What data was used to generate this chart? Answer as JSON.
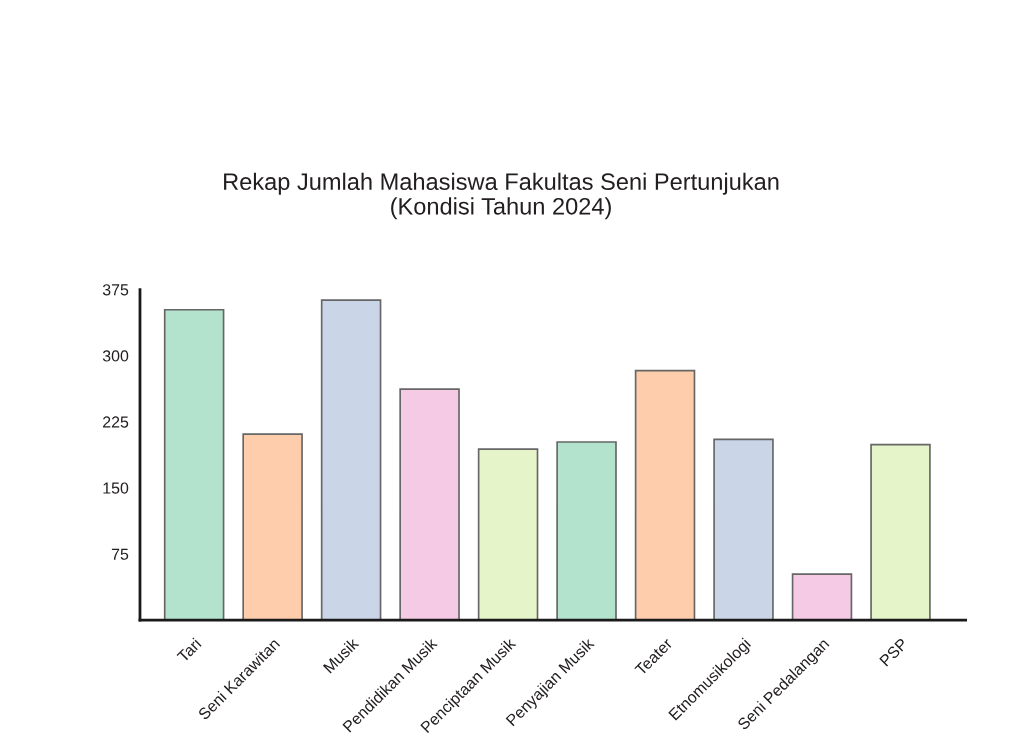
{
  "chart_data": {
    "type": "bar",
    "title": "Rekap Jumlah Mahasiswa Fakultas Seni Pertunjukan\n(Kondisi Tahun 2024)",
    "categories": [
      "Tari",
      "Seni Karawitan",
      "Musik",
      "Pendidikan Musik",
      "Penciptaan Musik",
      "Penyajian Musik",
      "Teater",
      "Etnomusikologi",
      "Seni Pedalangan",
      "PSP"
    ],
    "values": [
      352,
      211,
      363,
      262,
      194,
      202,
      283,
      205,
      52,
      199
    ],
    "colors": [
      "#b3e2cd",
      "#fdcdac",
      "#cbd5e8",
      "#f4cae4",
      "#e6f5c9",
      "#b3e2cd",
      "#fdcdac",
      "#cbd5e8",
      "#f4cae4",
      "#e6f5c9"
    ],
    "ylim": [
      0,
      375
    ],
    "yticks": [
      75,
      150,
      225,
      300,
      375
    ]
  }
}
